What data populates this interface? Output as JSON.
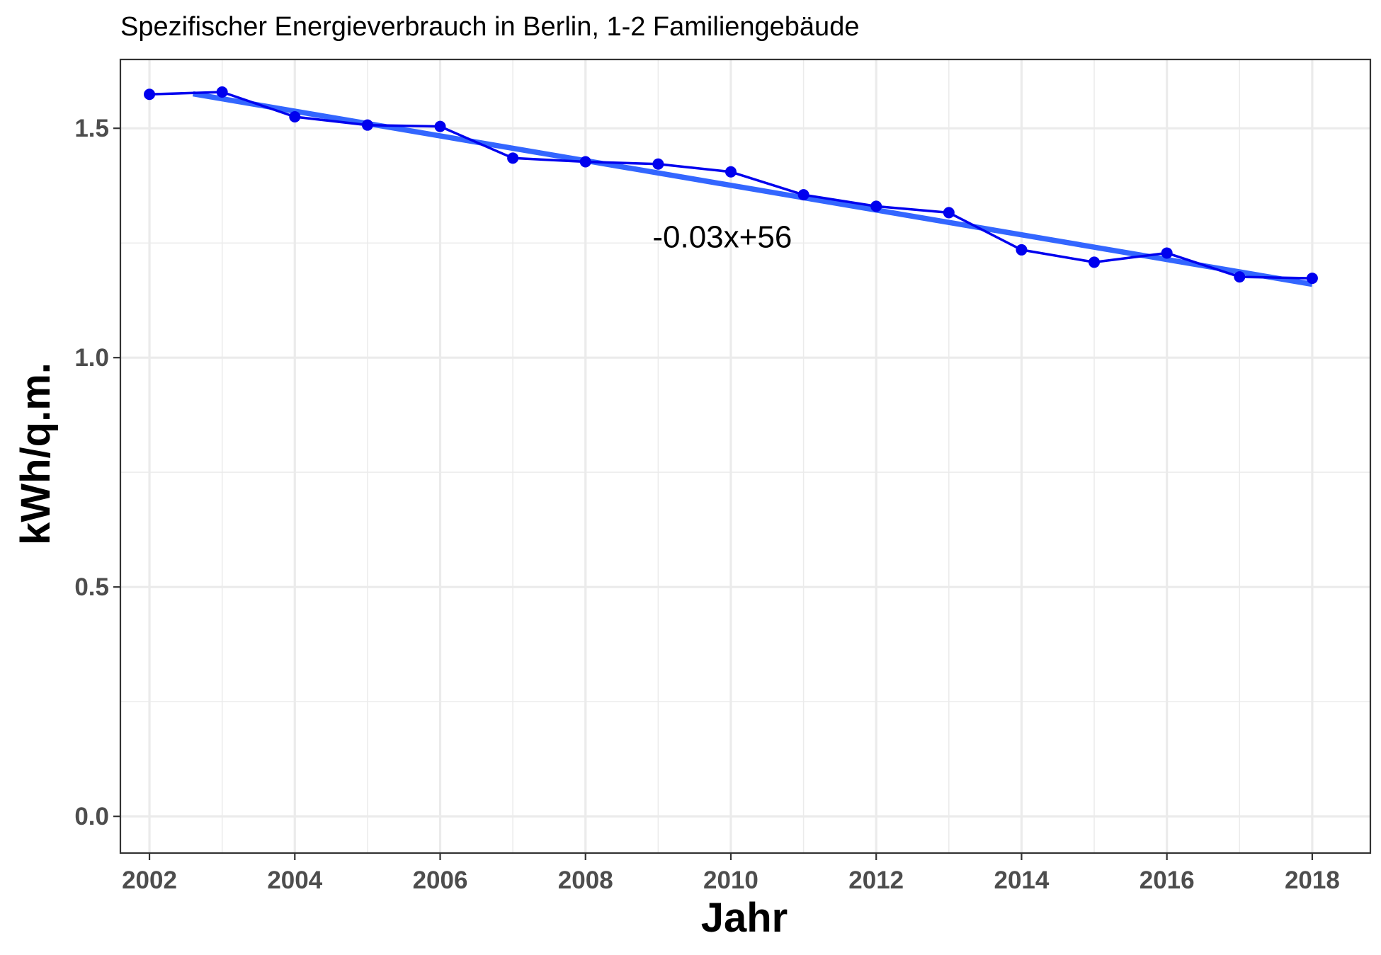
{
  "chart_data": {
    "type": "line",
    "title": "Spezifischer Energieverbrauch in Berlin, 1-2 Familiengebäude",
    "xlabel": "Jahr",
    "ylabel": "kWh/q.m.",
    "xlim": [
      2001.6,
      2018.8
    ],
    "ylim": [
      -0.08,
      1.65
    ],
    "x_ticks": [
      2002,
      2004,
      2006,
      2008,
      2010,
      2012,
      2014,
      2016,
      2018
    ],
    "x_tick_labels": [
      "2002",
      "2004",
      "2006",
      "2008",
      "2010",
      "2012",
      "2014",
      "2016",
      "2018"
    ],
    "y_ticks": [
      0.0,
      0.5,
      1.0,
      1.5
    ],
    "y_tick_labels": [
      "0.0",
      "0.5",
      "1.0",
      "1.5"
    ],
    "y_minor_ticks": [
      0.25,
      0.75,
      1.25
    ],
    "x_minor_ticks": [
      2003,
      2005,
      2007,
      2009,
      2011,
      2013,
      2015,
      2017
    ],
    "grid": true,
    "series": [
      {
        "x": [
          2002,
          2003,
          2004,
          2005,
          2006,
          2007,
          2008,
          2009,
          2010,
          2011,
          2012,
          2013,
          2014,
          2015,
          2016,
          2017,
          2018
        ],
        "values": [
          1.574,
          1.579,
          1.525,
          1.507,
          1.504,
          1.435,
          1.427,
          1.422,
          1.405,
          1.355,
          1.33,
          1.316,
          1.235,
          1.208,
          1.228,
          1.176,
          1.173
        ],
        "color": "#0000ee"
      }
    ],
    "trendline": {
      "x_start": 2002.6,
      "x_end": 2018,
      "y_start": 1.575,
      "y_end": 1.16,
      "color": "#3366ff",
      "label": "-0.03x+56",
      "label_x": 2009,
      "label_y": 1.24
    }
  }
}
